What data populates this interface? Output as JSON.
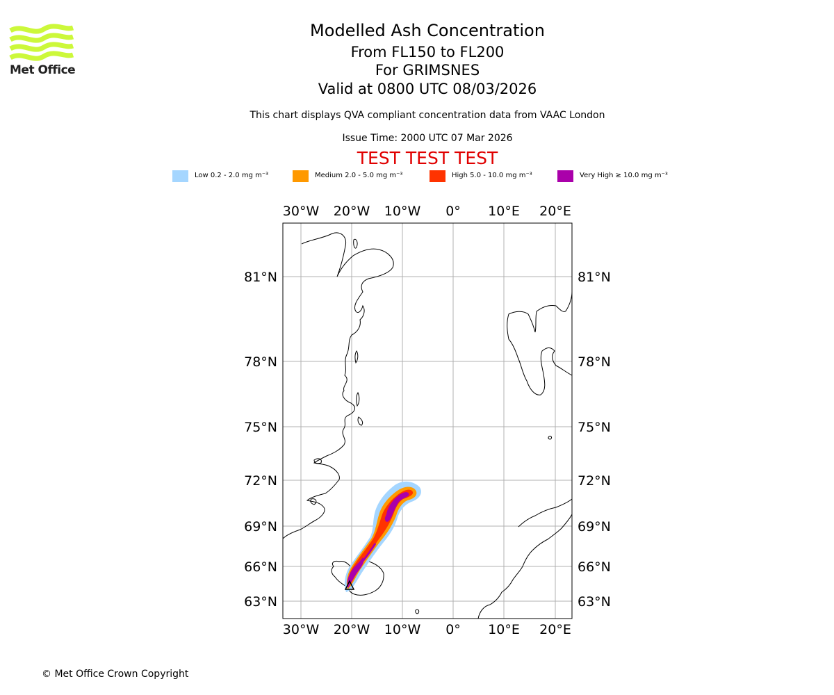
{
  "header": {
    "title": "Modelled Ash Concentration",
    "level": "From FL150 to FL200",
    "volcano": "For GRIMSNES",
    "valid": "Valid at 0800 UTC 08/03/2026",
    "note": "This chart displays QVA compliant concentration data from VAAC London",
    "issue": "Issue Time: 2000 UTC 07 Mar 2026",
    "test_banner": "TEST TEST TEST"
  },
  "logo": {
    "text": "Met Office",
    "color": "#ccf83a",
    "icon": "met-office-waves-logo"
  },
  "legend": [
    {
      "label": "Low 0.2 - 2.0 mg m⁻³",
      "color": "#a5d6ff"
    },
    {
      "label": "Medium 2.0 - 5.0 mg m⁻³",
      "color": "#ff9900"
    },
    {
      "label": "High 5.0 - 10.0 mg m⁻³",
      "color": "#ff3300"
    },
    {
      "label": "Very High  ≥  10.0 mg m⁻³",
      "color": "#aa00aa"
    }
  ],
  "map": {
    "lon_ticks": [
      "30°W",
      "20°W",
      "10°W",
      "0°",
      "10°E",
      "20°E"
    ],
    "lat_ticks": [
      "81°N",
      "78°N",
      "75°N",
      "72°N",
      "69°N",
      "66°N",
      "63°N"
    ],
    "gridlines": true
  },
  "footer": {
    "copyright": "© Met Office Crown Copyright"
  }
}
